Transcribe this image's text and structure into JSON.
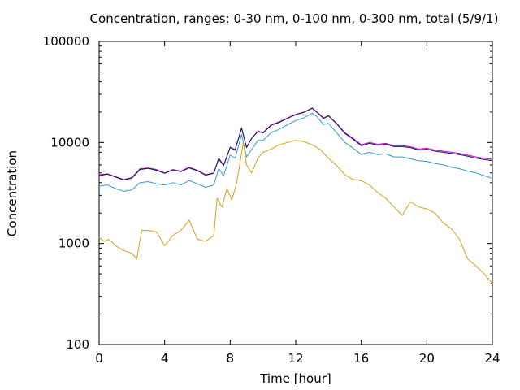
{
  "chart_data": {
    "type": "line",
    "title": "Concentration, ranges: 0-30 nm, 0-100 nm, 0-300 nm, total (5/9/1)",
    "xlabel": "Time [hour]",
    "ylabel": "Concentration",
    "xlim": [
      0,
      24
    ],
    "ylim": [
      100,
      100000
    ],
    "yscale": "log",
    "grid": false,
    "legend": "none",
    "x_ticks": [
      0,
      4,
      8,
      12,
      16,
      20,
      24
    ],
    "x_tick_labels": [
      "0",
      "4",
      "8",
      "12",
      "16",
      "20",
      "24"
    ],
    "y_ticks": [
      100,
      1000,
      10000,
      100000
    ],
    "y_tick_labels": [
      "100",
      "1000",
      "10000",
      "100000"
    ],
    "series": [
      {
        "color": "#cc00cc",
        "x": [
          0,
          0.5,
          1,
          1.5,
          2,
          2.5,
          3,
          3.5,
          4,
          4.5,
          5,
          5.5,
          6,
          6.5,
          7,
          7.3,
          7.6,
          8,
          8.3,
          8.7,
          9,
          9.3,
          9.7,
          10,
          10.5,
          11,
          11.5,
          12,
          12.5,
          13,
          13.3,
          13.7,
          14,
          14.5,
          15,
          15.5,
          16,
          16.5,
          17,
          17.5,
          18,
          18.5,
          19,
          19.5,
          20,
          20.5,
          21,
          21.5,
          22,
          22.5,
          23,
          23.5,
          24
        ],
        "values": [
          4800,
          4900,
          4600,
          4300,
          4500,
          5500,
          5600,
          5400,
          5000,
          5400,
          5200,
          5700,
          5300,
          4800,
          5000,
          7000,
          6000,
          9000,
          8500,
          14000,
          9000,
          11000,
          13000,
          12500,
          15000,
          16000,
          17500,
          19000,
          20000,
          22000,
          20000,
          17500,
          18500,
          15500,
          12500,
          11000,
          9500,
          10000,
          9600,
          9800,
          9300,
          9300,
          9100,
          8600,
          8800,
          8400,
          8200,
          8000,
          7800,
          7500,
          7200,
          7000,
          6800
        ]
      },
      {
        "color": "#0b1a5e",
        "x": [
          0,
          0.5,
          1,
          1.5,
          2,
          2.5,
          3,
          3.5,
          4,
          4.5,
          5,
          5.5,
          6,
          6.5,
          7,
          7.3,
          7.6,
          8,
          8.3,
          8.7,
          9,
          9.3,
          9.7,
          10,
          10.5,
          11,
          11.5,
          12,
          12.5,
          13,
          13.3,
          13.7,
          14,
          14.5,
          15,
          15.5,
          16,
          16.5,
          17,
          17.5,
          18,
          18.5,
          19,
          19.5,
          20,
          20.5,
          21,
          21.5,
          22,
          22.5,
          23,
          23.5,
          24
        ],
        "values": [
          4700,
          4850,
          4550,
          4250,
          4450,
          5400,
          5550,
          5300,
          4950,
          5350,
          5150,
          5600,
          5250,
          4750,
          4950,
          6900,
          5900,
          8900,
          8400,
          13800,
          8900,
          10900,
          12900,
          12400,
          14800,
          15800,
          17300,
          18800,
          19800,
          21800,
          19800,
          17300,
          18300,
          15300,
          12300,
          10800,
          9300,
          9800,
          9400,
          9600,
          9100,
          9100,
          8900,
          8400,
          8600,
          8200,
          8000,
          7800,
          7600,
          7300,
          7000,
          6800,
          6600
        ]
      },
      {
        "color": "#3399cc",
        "x": [
          0,
          0.5,
          1,
          1.5,
          2,
          2.5,
          3,
          3.5,
          4,
          4.5,
          5,
          5.5,
          6,
          6.5,
          7,
          7.3,
          7.6,
          8,
          8.3,
          8.7,
          9,
          9.3,
          9.7,
          10,
          10.5,
          11,
          11.5,
          12,
          12.5,
          13,
          13.3,
          13.7,
          14,
          14.5,
          15,
          15.5,
          16,
          16.5,
          17,
          17.5,
          18,
          18.5,
          19,
          19.5,
          20,
          20.5,
          21,
          21.5,
          22,
          22.5,
          23,
          23.5,
          24
        ],
        "values": [
          3700,
          3800,
          3500,
          3300,
          3400,
          4000,
          4100,
          3900,
          3800,
          4000,
          3800,
          4200,
          3900,
          3600,
          3800,
          5500,
          4700,
          7500,
          7000,
          12000,
          7200,
          8500,
          10500,
          10500,
          12500,
          13500,
          15000,
          16500,
          17500,
          19500,
          18000,
          15000,
          15500,
          12500,
          10000,
          8800,
          7600,
          8000,
          7600,
          7700,
          7200,
          7200,
          6900,
          6600,
          6500,
          6200,
          6000,
          5700,
          5500,
          5200,
          5000,
          4700,
          4400
        ]
      },
      {
        "color": "#d4a017",
        "x": [
          0,
          0.3,
          0.6,
          1,
          1.5,
          2,
          2.3,
          2.6,
          3,
          3.5,
          4,
          4.5,
          5,
          5.5,
          6,
          6.5,
          7,
          7.2,
          7.5,
          7.8,
          8.1,
          8.4,
          8.8,
          9,
          9.3,
          9.7,
          10,
          10.5,
          11,
          11.5,
          12,
          12.5,
          13,
          13.5,
          14,
          14.5,
          15,
          15.5,
          16,
          16.5,
          17,
          17.5,
          18,
          18.5,
          19,
          19.5,
          20,
          20.5,
          21,
          21.5,
          22,
          22.5,
          23,
          23.5,
          24
        ],
        "values": [
          1150,
          1050,
          1100,
          950,
          850,
          800,
          700,
          1350,
          1350,
          1300,
          950,
          1200,
          1350,
          1700,
          1100,
          1050,
          1200,
          2800,
          2300,
          3500,
          2700,
          4000,
          10000,
          6000,
          5000,
          7000,
          8000,
          8600,
          9500,
          10000,
          10500,
          10200,
          9500,
          8500,
          7000,
          5900,
          4800,
          4300,
          4200,
          3800,
          3200,
          2800,
          2300,
          1900,
          2600,
          2300,
          2200,
          2000,
          1600,
          1400,
          1100,
          700,
          600,
          500,
          400
        ]
      }
    ]
  }
}
